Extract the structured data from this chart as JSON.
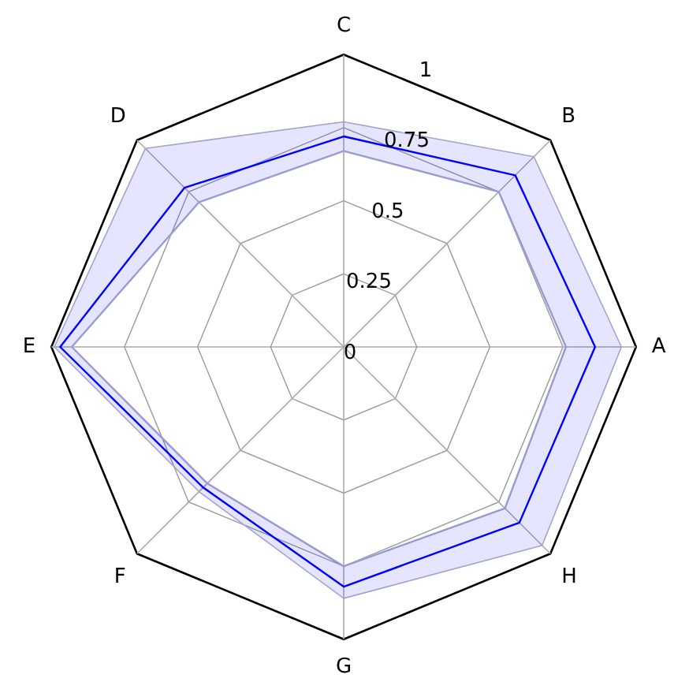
{
  "chart_data": {
    "type": "radar",
    "categories": [
      "C",
      "B",
      "A",
      "H",
      "G",
      "F",
      "E",
      "D"
    ],
    "series": [
      {
        "color": "#0000ff",
        "values": [
          0.72,
          0.83,
          0.86,
          0.85,
          0.82,
          0.68,
          0.97,
          0.77
        ]
      },
      {
        "type": "area",
        "color": "#a3a3d0",
        "values": [
          0.77,
          0.92,
          0.95,
          0.96,
          0.86,
          0.7,
          0.99,
          0.96
        ]
      },
      {
        "color": "#a3a3d0",
        "values": [
          0.67,
          0.75,
          0.76,
          0.78,
          0.75,
          0.66,
          0.93,
          0.7
        ]
      }
    ],
    "ylim": [
      0,
      1
    ],
    "yticks": [
      0,
      0.25,
      0.5,
      0.75,
      1
    ],
    "grid": true,
    "marker": "none"
  }
}
